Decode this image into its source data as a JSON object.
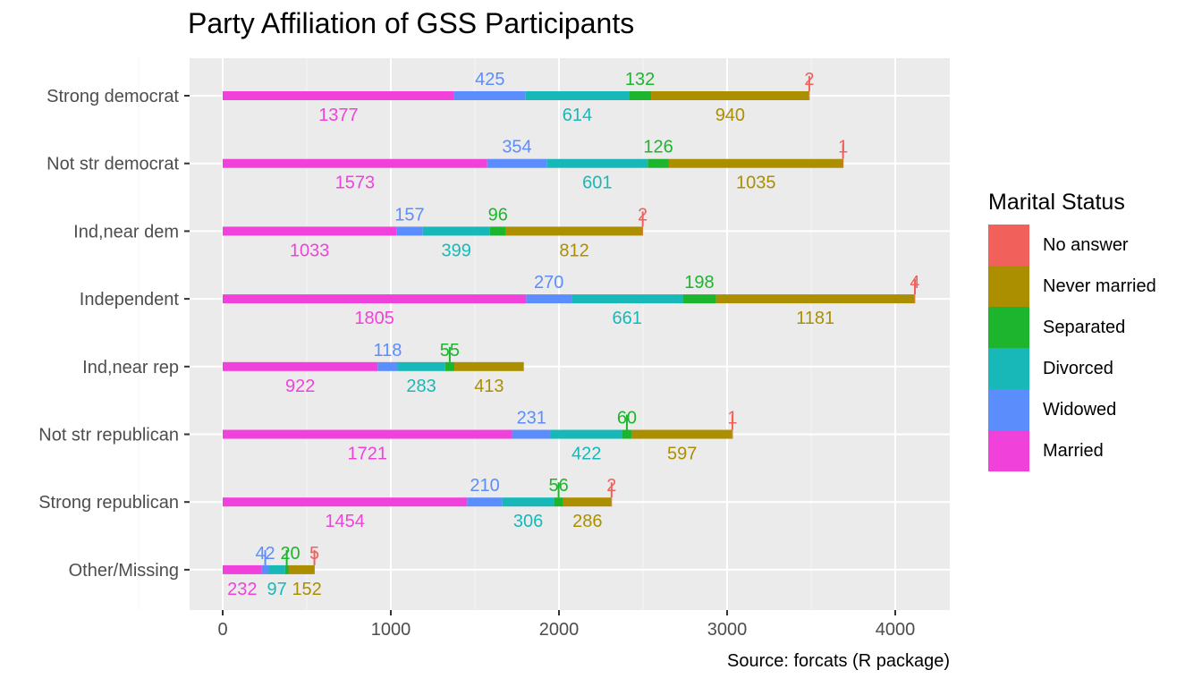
{
  "chart_data": {
    "type": "bar",
    "orientation": "horizontal",
    "stacked": true,
    "title": "Party Affiliation of GSS Participants",
    "caption": "Source: forcats (R package)",
    "xlabel": "",
    "ylabel": "",
    "xlim": [
      -200,
      4300
    ],
    "xticks": [
      0,
      1000,
      2000,
      3000,
      4000
    ],
    "grid": true,
    "legend": {
      "title": "Marital Status",
      "position": "right",
      "entries": [
        "No answer",
        "Never married",
        "Separated",
        "Divorced",
        "Widowed",
        "Married"
      ]
    },
    "categories": [
      "Strong democrat",
      "Not str democrat",
      "Ind,near dem",
      "Independent",
      "Ind,near rep",
      "Not str republican",
      "Strong republican",
      "Other/Missing"
    ],
    "series": [
      {
        "name": "Married",
        "color": "#F042DB",
        "values": [
          1377,
          1573,
          1033,
          1805,
          922,
          1721,
          1454,
          232
        ]
      },
      {
        "name": "Widowed",
        "color": "#5B8EFC",
        "values": [
          425,
          354,
          157,
          270,
          118,
          231,
          210,
          42
        ]
      },
      {
        "name": "Divorced",
        "color": "#19B8B8",
        "values": [
          614,
          601,
          399,
          661,
          283,
          422,
          306,
          97
        ]
      },
      {
        "name": "Separated",
        "color": "#1DB52E",
        "values": [
          132,
          126,
          96,
          198,
          55,
          60,
          56,
          20
        ]
      },
      {
        "name": "Never married",
        "color": "#AB8F00",
        "values": [
          940,
          1035,
          812,
          1181,
          413,
          597,
          286,
          152
        ]
      },
      {
        "name": "No answer",
        "color": "#F2605C",
        "values": [
          2,
          1,
          2,
          4,
          null,
          1,
          2,
          5
        ]
      }
    ]
  }
}
